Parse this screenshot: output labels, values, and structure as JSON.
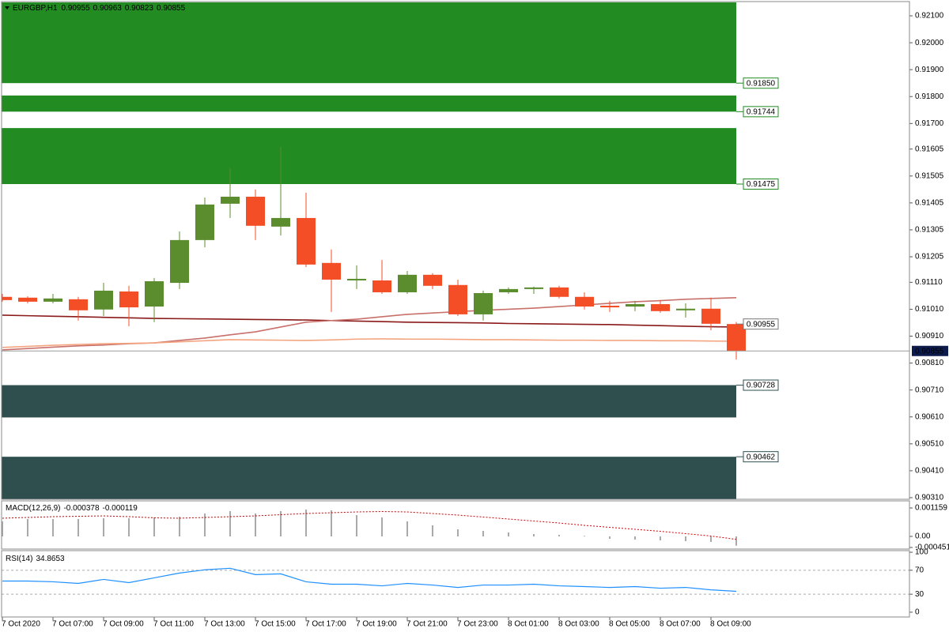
{
  "chart_data": [
    {
      "type": "candlestick",
      "symbol": "EURGBP,H1",
      "categories": [
        "7 Oct 2020",
        null,
        "7 Oct 07:00",
        null,
        "7 Oct 09:00",
        null,
        "7 Oct 11:00",
        null,
        "7 Oct 13:00",
        null,
        "7 Oct 15:00",
        null,
        "7 Oct 17:00",
        null,
        "7 Oct 19:00",
        null,
        "7 Oct 21:00",
        null,
        "7 Oct 23:00",
        null,
        "8 Oct 01:00",
        null,
        "8 Oct 03:00",
        null,
        "8 Oct 05:00",
        null,
        "8 Oct 07:00",
        null,
        "8 Oct 09:00",
        null
      ],
      "open": [
        0.91056,
        0.91053,
        0.91038,
        0.91047,
        0.91009,
        0.91076,
        0.9102,
        0.91108,
        0.91267,
        0.91402,
        0.91428,
        0.91317,
        0.91349,
        0.91182,
        0.91117,
        0.91117,
        0.91073,
        0.91138,
        0.911,
        0.90991,
        0.91073,
        0.91085,
        0.91091,
        0.91056,
        0.91023,
        0.9102,
        0.91029,
        0.91006,
        0.91012,
        0.90955
      ],
      "high": [
        0.91067,
        0.91058,
        0.91067,
        0.91056,
        0.91108,
        0.91097,
        0.91126,
        0.91299,
        0.91425,
        0.91534,
        0.91455,
        0.91613,
        0.91443,
        0.91232,
        0.91173,
        0.91193,
        0.91152,
        0.91144,
        0.9112,
        0.91079,
        0.91091,
        0.91094,
        0.91097,
        0.91073,
        0.91041,
        0.91041,
        0.91044,
        0.91032,
        0.91053,
        0.90963
      ],
      "low": [
        0.91038,
        0.91032,
        0.91032,
        0.90968,
        0.90985,
        0.90947,
        0.90962,
        0.91085,
        0.9124,
        0.91349,
        0.91267,
        0.91284,
        0.91167,
        0.91,
        0.91085,
        0.91067,
        0.91067,
        0.91085,
        0.90985,
        0.90968,
        0.91067,
        0.91067,
        0.9105,
        0.91009,
        0.91,
        0.91003,
        0.90997,
        0.90979,
        0.90932,
        0.90823
      ],
      "close": [
        0.91044,
        0.91038,
        0.9105,
        0.91006,
        0.91079,
        0.91017,
        0.91114,
        0.91267,
        0.91399,
        0.91428,
        0.9132,
        0.91349,
        0.91176,
        0.9112,
        0.91123,
        0.91073,
        0.91138,
        0.91097,
        0.90991,
        0.9107,
        0.91085,
        0.91091,
        0.91056,
        0.9102,
        0.91017,
        0.91029,
        0.91003,
        0.91012,
        0.90956,
        0.90855
      ],
      "up_color": "#5b8c2e",
      "down_color": "#f44e27",
      "overlays": [
        {
          "color": "#8b1a1a",
          "values": [
            0.90988,
            0.90986,
            0.90984,
            0.90982,
            0.9098,
            0.90978,
            0.90976,
            0.90975,
            0.90974,
            0.90973,
            0.90972,
            0.90971,
            0.9097,
            0.90968,
            0.90966,
            0.90964,
            0.90962,
            0.90961,
            0.9096,
            0.90959,
            0.90957,
            0.90956,
            0.90955,
            0.90954,
            0.90953,
            0.90951,
            0.90949,
            0.90947,
            0.90945,
            0.90944
          ]
        },
        {
          "color": "#c8706a",
          "values": [
            0.90859,
            0.90864,
            0.90869,
            0.90874,
            0.90877,
            0.90882,
            0.90885,
            0.90894,
            0.90903,
            0.90915,
            0.90926,
            0.90944,
            0.90962,
            0.90968,
            0.90973,
            0.90982,
            0.90991,
            0.90996,
            0.91001,
            0.91006,
            0.9101,
            0.91014,
            0.9102,
            0.91026,
            0.91032,
            0.91038,
            0.91042,
            0.91047,
            0.9105,
            0.91053
          ]
        },
        {
          "color": "#f4a580",
          "values": [
            0.90868,
            0.90872,
            0.90876,
            0.90879,
            0.90882,
            0.90883,
            0.90885,
            0.90889,
            0.90893,
            0.90897,
            0.90896,
            0.90895,
            0.90894,
            0.90896,
            0.90899,
            0.909,
            0.90899,
            0.90899,
            0.90898,
            0.90897,
            0.90897,
            0.90896,
            0.90895,
            0.90895,
            0.90894,
            0.90894,
            0.90893,
            0.90893,
            0.90892,
            0.90891
          ]
        }
      ],
      "zones": [
        {
          "level": {
            "value": 0.9185,
            "label": "0.91850"
          },
          "extent": 0.9215,
          "color": "#228b22"
        },
        {
          "level": 0.91744,
          "extent": 0.91804,
          "color": "#228b22"
        },
        {
          "level": 0.91475,
          "extent": 0.91683,
          "color": "#228b22"
        },
        {
          "level": 0.90728,
          "extent": 0.90608,
          "color": "#2f4f4f"
        },
        {
          "level": 0.90462,
          "extent": 0.90304,
          "color": "#2f4f4f"
        }
      ],
      "price_labels": [
        0.90955
      ],
      "last_price": 0.90855,
      "ylim": [
        0.90304,
        0.9215
      ],
      "yticks": [
        {
          "value": 0.921,
          "label": "0.92100"
        },
        {
          "value": 0.92,
          "label": "0.92000"
        },
        {
          "value": 0.919,
          "label": "0.91900"
        },
        {
          "value": 0.918,
          "label": "0.91800"
        },
        {
          "value": 0.917,
          "label": "0.91700"
        },
        0.91605,
        0.91505,
        0.91405,
        0.91305,
        0.91205,
        {
          "value": 0.9111,
          "label": "0.91110"
        },
        {
          "value": 0.9101,
          "label": "0.91010"
        },
        {
          "value": 0.9091,
          "label": "0.90910"
        },
        {
          "value": 0.9081,
          "label": "0.90810"
        },
        {
          "value": 0.9071,
          "label": "0.90710"
        },
        {
          "value": 0.9061,
          "label": "0.90610"
        },
        {
          "value": 0.9051,
          "label": "0.90510"
        },
        {
          "value": 0.9041,
          "label": "0.90410"
        },
        {
          "value": 0.9031,
          "label": "0.90310"
        }
      ]
    },
    {
      "type": "macd",
      "title": "MACD(12,26,9)",
      "histogram": [
        0.000612,
        0.000708,
        0.000708,
        0.000708,
        0.000741,
        0.000741,
        0.000773,
        0.000805,
        0.000934,
        0.00103,
        0.000934,
        0.00103,
        0.001095,
        0.001062,
        0.000869,
        0.000773,
        0.000612,
        0.000451,
        0.00029,
        0.000225,
        0.000161,
        9.7e-05,
        6.4e-05,
        2e-05,
        -9.7e-05,
        -0.000129,
        -0.000161,
        -0.000193,
        -0.000225,
        -0.000378
      ],
      "signal": [
        0.000741,
        0.000773,
        0.000805,
        0.000821,
        0.000837,
        0.000805,
        0.000757,
        0.000741,
        0.000773,
        0.000805,
        0.000837,
        0.000886,
        0.000934,
        0.000966,
        0.000998,
        0.001014,
        0.000998,
        0.000934,
        0.000869,
        0.000789,
        0.000708,
        0.000628,
        0.000547,
        0.000451,
        0.00037,
        0.00029,
        0.000209,
        0.000113,
        1.6e-05,
        -0.000119
      ],
      "histogram_color": "#a9a9a9",
      "signal_color": "#cc0000",
      "ylim": [
        -0.000515,
        0.001449
      ],
      "yticks": [
        0.001159,
        {
          "value": 0,
          "label": "0.00"
        },
        -0.000451
      ]
    },
    {
      "type": "line",
      "title": "RSI(14)",
      "values": [
        52.0,
        52.0,
        50.7,
        48.0,
        54.7,
        49.3,
        57.3,
        65.3,
        70.7,
        73.3,
        62.7,
        64.0,
        50.7,
        46.7,
        46.7,
        44.0,
        48.0,
        45.3,
        41.3,
        45.3,
        45.3,
        46.7,
        44.0,
        42.7,
        41.3,
        42.7,
        40.0,
        41.3,
        37.3,
        34.8653
      ],
      "color": "#1e90ff",
      "levels": [
        30,
        70
      ],
      "ylim": [
        -8,
        102.7
      ],
      "yticks": [
        0,
        30,
        70,
        100
      ]
    }
  ]
}
